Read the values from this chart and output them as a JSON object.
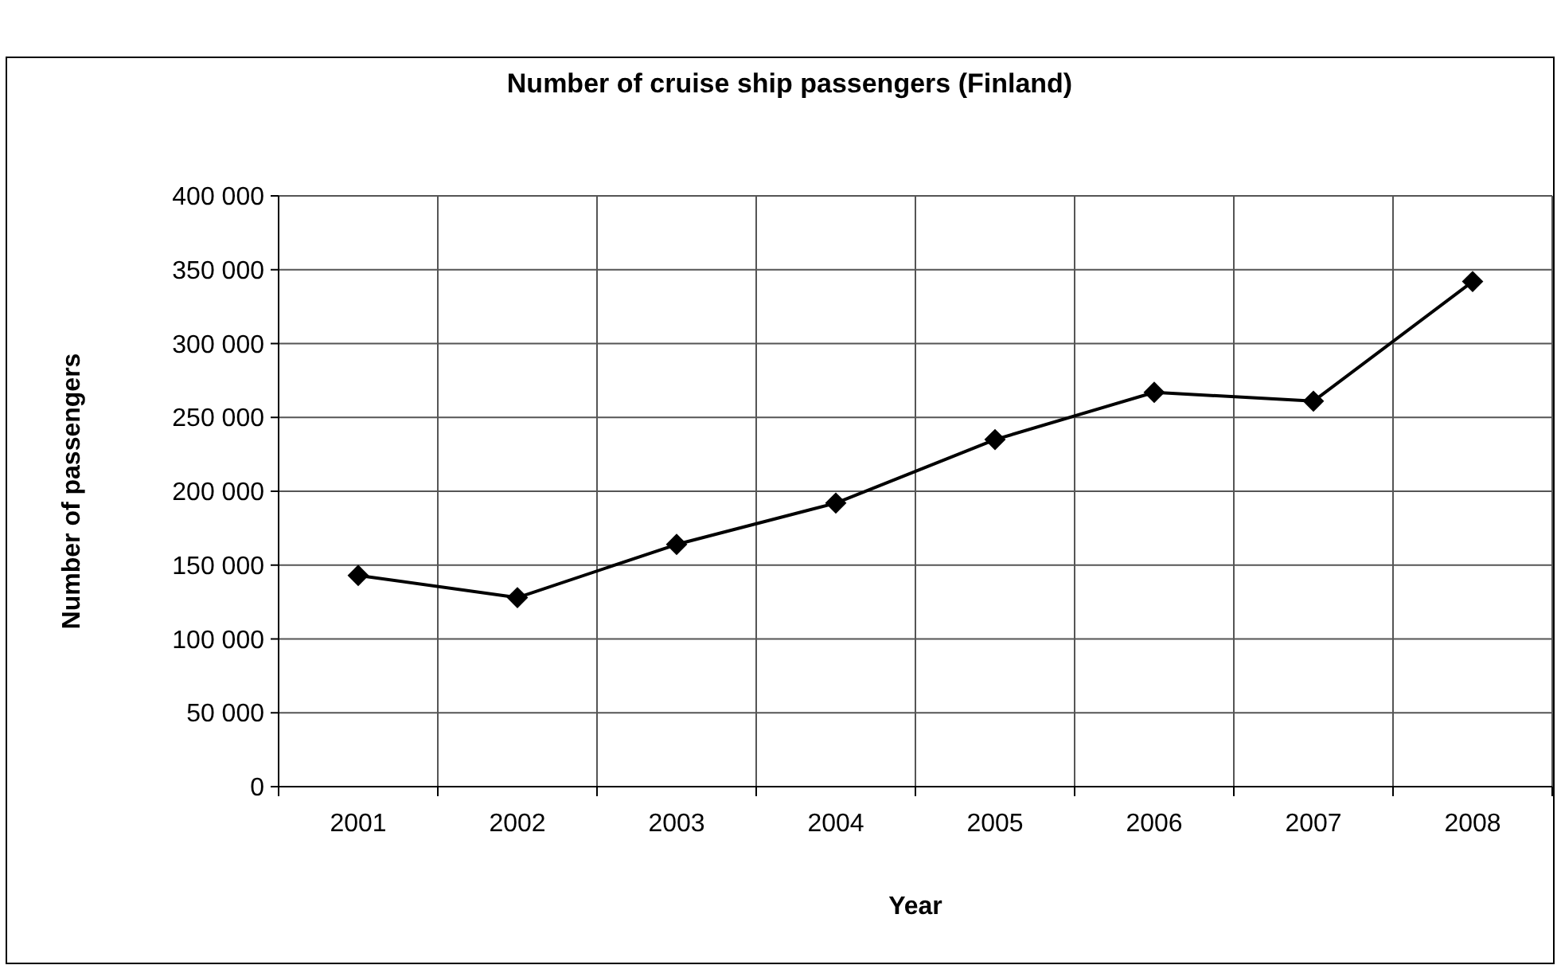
{
  "chart_data": {
    "type": "line",
    "title": "Number of cruise ship passengers (Finland)",
    "xlabel": "Year",
    "ylabel": "Number of passengers",
    "categories": [
      "2001",
      "2002",
      "2003",
      "2004",
      "2005",
      "2006",
      "2007",
      "2008"
    ],
    "series": [
      {
        "color": "#000000",
        "values": [
          143000,
          128000,
          164000,
          192000,
          235000,
          267000,
          261000,
          342000
        ]
      }
    ],
    "ylim": [
      0,
      400000
    ],
    "yticks": [
      {
        "value": 0,
        "label": "0"
      },
      {
        "value": 50000,
        "label": "50 000"
      },
      {
        "value": 100000,
        "label": "100 000"
      },
      {
        "value": 150000,
        "label": "150 000"
      },
      {
        "value": 200000,
        "label": "200 000"
      },
      {
        "value": 250000,
        "label": "250 000"
      },
      {
        "value": 300000,
        "label": "300 000"
      },
      {
        "value": 350000,
        "label": "350 000"
      },
      {
        "value": 400000,
        "label": "400 000"
      }
    ],
    "grid": true,
    "marker": "diamond",
    "line_style": "solid"
  }
}
